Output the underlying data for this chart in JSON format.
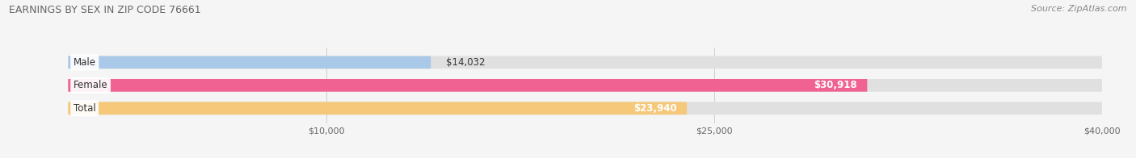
{
  "title": "EARNINGS BY SEX IN ZIP CODE 76661",
  "source": "Source: ZipAtlas.com",
  "categories": [
    "Male",
    "Female",
    "Total"
  ],
  "values": [
    14032,
    30918,
    23940
  ],
  "bar_colors": [
    "#aac9e8",
    "#f06292",
    "#f5c87a"
  ],
  "label_colors": [
    "#333333",
    "#ffffff",
    "#333333"
  ],
  "value_labels": [
    "$14,032",
    "$30,918",
    "$23,940"
  ],
  "bar_bg_color": "#e0e0e0",
  "xlim": [
    0,
    40000
  ],
  "xticks": [
    10000,
    25000,
    40000
  ],
  "xtick_labels": [
    "$10,000",
    "$25,000",
    "$40,000"
  ],
  "bar_height": 0.55,
  "figsize": [
    14.06,
    1.96
  ],
  "dpi": 100,
  "title_fontsize": 9,
  "label_fontsize": 8.5,
  "tick_fontsize": 8,
  "source_fontsize": 8,
  "background_color": "#f5f5f5"
}
